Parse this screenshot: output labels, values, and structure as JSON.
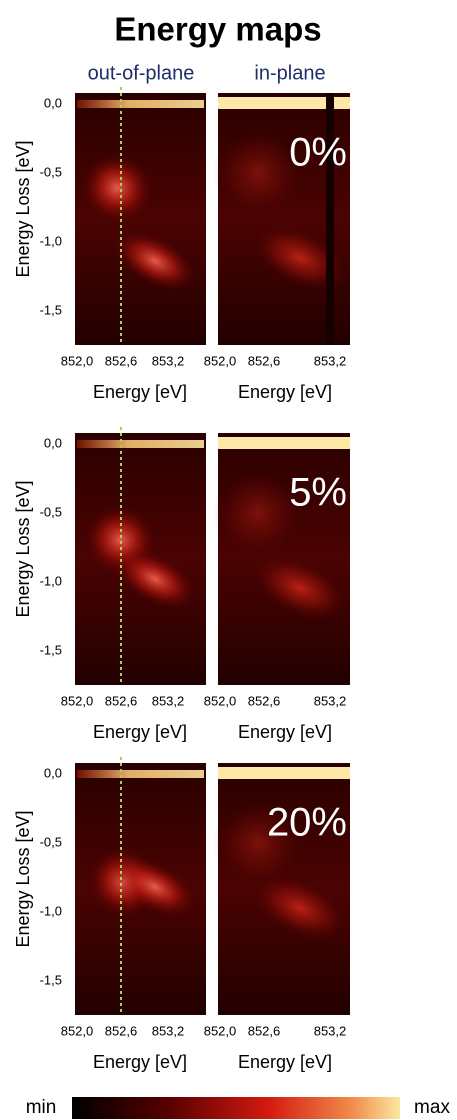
{
  "title": "Energy maps",
  "column_labels": [
    "out-of-plane",
    "in-plane"
  ],
  "y_axis_label": "Energy Loss [eV]",
  "x_axis_label": "Energy [eV]",
  "rows": [
    {
      "label": "0%",
      "y_ticks": [
        "0,0",
        "-0,5",
        "-1,0",
        "-1,5"
      ],
      "x_ticks_left": [
        "852,0",
        "852,6",
        "853,2"
      ],
      "x_ticks_right": [
        "852,0",
        "852,6",
        "853,2"
      ]
    },
    {
      "label": "5%",
      "y_ticks": [
        "0,0",
        "-0,5",
        "-1,0",
        "-1,5"
      ],
      "x_ticks_left": [
        "852,0",
        "852,6",
        "853,2"
      ],
      "x_ticks_right": [
        "852,0",
        "852,6",
        "853,2"
      ]
    },
    {
      "label": "20%",
      "y_ticks": [
        "0,0",
        "-0,5",
        "-1,0",
        "-1,5"
      ],
      "x_ticks_left": [
        "852,0",
        "852,6",
        "853,2"
      ],
      "x_ticks_right": [
        "852,0",
        "852,6",
        "853,2"
      ]
    }
  ],
  "colorbar": {
    "min": "min",
    "max": "max"
  }
}
